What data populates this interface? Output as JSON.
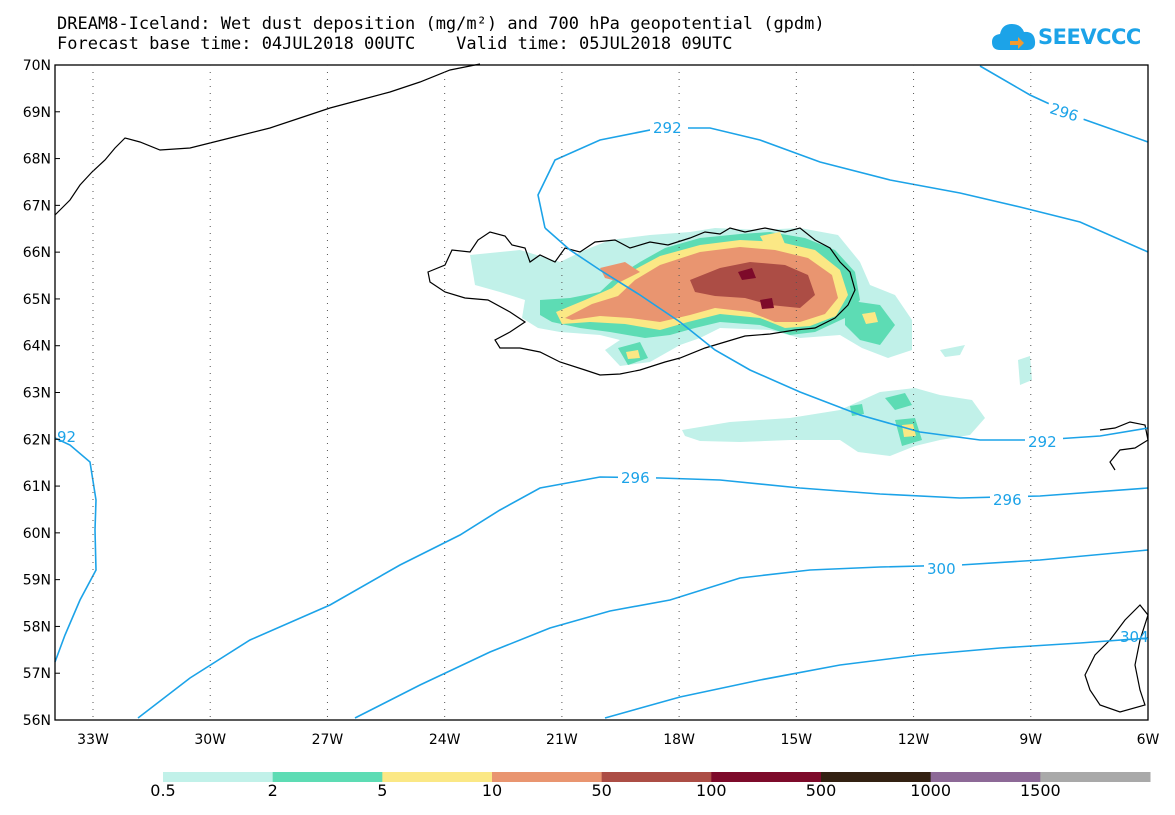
{
  "header": {
    "title_line1": "DREAM8-Iceland: Wet dust deposition (mg/m²) and 700 hPa geopotential (gpdm)",
    "title_line2": "Forecast base time: 04JUL2018 00UTC    Valid time: 05JUL2018 09UTC",
    "logo_text": "SEEVCCC"
  },
  "map": {
    "lat_labels": [
      "70N",
      "69N",
      "68N",
      "67N",
      "66N",
      "65N",
      "64N",
      "63N",
      "62N",
      "61N",
      "60N",
      "59N",
      "58N",
      "57N",
      "56N"
    ],
    "lon_labels": [
      "33W",
      "30W",
      "27W",
      "24W",
      "21W",
      "18W",
      "15W",
      "12W",
      "9W",
      "6W"
    ],
    "contour_labels": [
      "292",
      "296",
      "296",
      "296",
      "292",
      "300",
      "304",
      "92"
    ]
  },
  "colorbar": {
    "colors": [
      "#c1f1e9",
      "#5ddcb4",
      "#fbe885",
      "#e99570",
      "#ac4d45",
      "#7d0a2a",
      "#332112",
      "#8d6997",
      "#a9a9a9"
    ],
    "labels": [
      "0.5",
      "2",
      "5",
      "10",
      "50",
      "100",
      "500",
      "1000",
      "1500"
    ]
  }
}
